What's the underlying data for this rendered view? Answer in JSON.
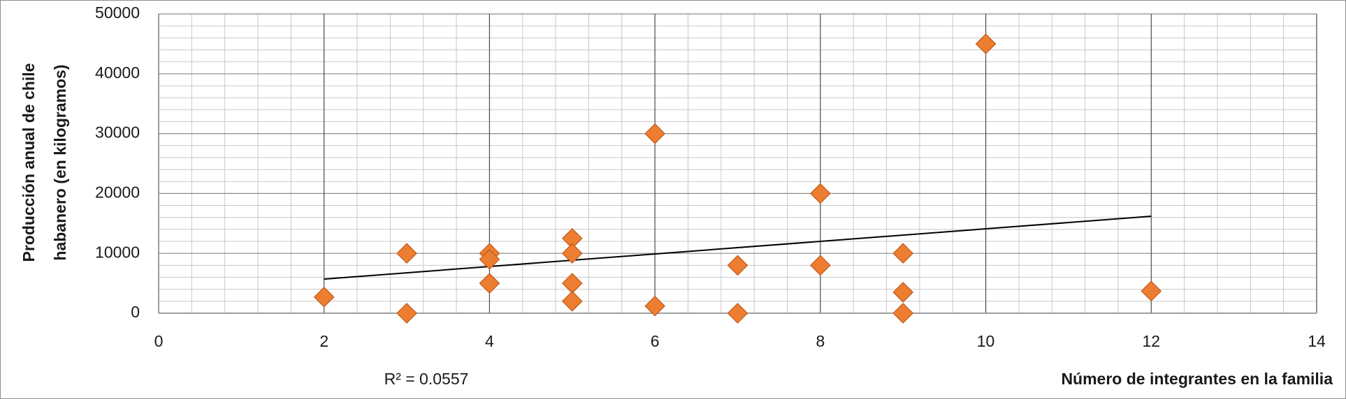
{
  "chart_data": {
    "type": "scatter",
    "x_label": "Número de integrantes en la familia",
    "y_label": [
      "Producción anual de chile",
      "habanero (en kilogramos)"
    ],
    "annotation": "R² = 0.0557",
    "series": [
      {
        "color": "#ed7d31",
        "x": [
          2,
          3,
          3,
          4,
          4,
          4,
          5,
          5,
          5,
          5,
          6,
          6,
          7,
          7,
          8,
          8,
          9,
          9,
          9,
          10,
          12
        ],
        "values": [
          2700,
          10000,
          0,
          10000,
          9000,
          5000,
          12500,
          10000,
          5000,
          2000,
          30000,
          1200,
          8000,
          0,
          20000,
          8000,
          10000,
          3500,
          0,
          45000,
          3700
        ]
      }
    ],
    "trendline": {
      "x": [
        2,
        12
      ],
      "values": [
        5700,
        16200
      ],
      "color": "#000000"
    },
    "xlim": [
      0,
      14
    ],
    "xticks": [
      0,
      2,
      4,
      6,
      8,
      10,
      12,
      14
    ],
    "ylim": [
      0,
      50000
    ],
    "yticks": [
      0,
      10000,
      20000,
      30000,
      40000,
      50000
    ],
    "grid": true
  }
}
